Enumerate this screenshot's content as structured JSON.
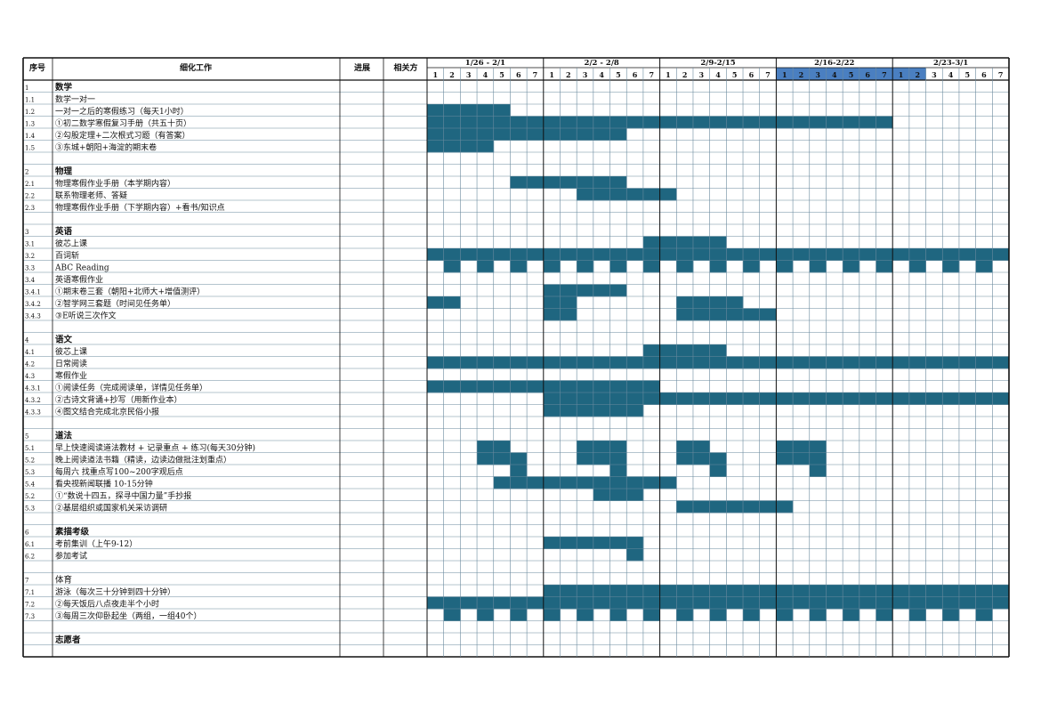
{
  "header": {
    "seq_label": "序号",
    "task_label": "细化工作",
    "progress_label": "进展",
    "related_label": "相关方"
  },
  "weeks": [
    {
      "label": "1/26  - 2/1",
      "highlighted": false
    },
    {
      "label": "2/2  - 2/8",
      "highlighted": false
    },
    {
      "label": "2/9-2/15",
      "highlighted": false
    },
    {
      "label": "2/16-2/22",
      "highlighted": true
    },
    {
      "label": "2/23-3/1",
      "highlighted": false
    }
  ],
  "day_numbers": [
    "1",
    "2",
    "3",
    "4",
    "5",
    "6",
    "7"
  ],
  "highlighted_day_cells": [
    21,
    22,
    23,
    24,
    25,
    26,
    27,
    28,
    29
  ],
  "colors": {
    "fill": "#1f6680",
    "highlight": "#4a7fc1",
    "grid": "#6a8a9e",
    "border": "#111111"
  },
  "rows": [
    {
      "id": "1",
      "task": "数学",
      "bold": true,
      "section": true,
      "fill": ""
    },
    {
      "id": "1.1",
      "task": "数学一对一",
      "fill": "0000000000000000000000000000000000000000000000000000000000000000000000000000000000000000000000000000000000000000000000000000"
    },
    {
      "id": "1.2",
      "task": "一对一之后的寒假练习（每天1小时）",
      "fill": ""
    },
    {
      "id": "1.3",
      "task": "①初二数学寒假复习手册（共五十页）",
      "fill": ""
    },
    {
      "id": "1.4",
      "task": "②勾股定理+二次根式习题（有答案）",
      "fill": ""
    },
    {
      "id": "1.5",
      "task": "③东城+朝阳+海淀的期末卷",
      "fill": ""
    },
    {
      "id": "",
      "task": "",
      "fill": ""
    },
    {
      "id": "2",
      "task": "物理",
      "bold": true,
      "section": true,
      "fill": ""
    },
    {
      "id": "2.1",
      "task": "物理寒假作业手册（本学期内容）",
      "fill": ""
    },
    {
      "id": "2.2",
      "task": "联系物理老师、答疑",
      "fill": ""
    },
    {
      "id": "2.3",
      "task": "物理寒假作业手册（下学期内容）+看书/知识点",
      "fill": ""
    },
    {
      "id": "",
      "task": "",
      "fill": ""
    },
    {
      "id": "3",
      "task": "英语",
      "bold": true,
      "section": true,
      "fill": ""
    },
    {
      "id": "3.1",
      "task": "彼芯上课",
      "fill": ""
    },
    {
      "id": "3.2",
      "task": "百词斩",
      "fill": ""
    },
    {
      "id": "3.3",
      "task": "ABC Reading",
      "fill": ""
    },
    {
      "id": "3.4",
      "task": "英语寒假作业",
      "fill": ""
    },
    {
      "id": "3.4.1",
      "task": "①期末卷三套（朝阳+北师大+增值测评）",
      "fill": ""
    },
    {
      "id": "3.4.2",
      "task": "②智学网三套题（时间见任务单）",
      "fill": ""
    },
    {
      "id": "3.4.3",
      "task": "③E听说三次作文",
      "fill": ""
    },
    {
      "id": "",
      "task": "",
      "fill": ""
    },
    {
      "id": "4",
      "task": "语文",
      "bold": true,
      "section": true,
      "fill": ""
    },
    {
      "id": "4.1",
      "task": "彼芯上课",
      "fill": ""
    },
    {
      "id": "4.2",
      "task": "日常阅读",
      "fill": ""
    },
    {
      "id": "4.3",
      "task": "寒假作业",
      "fill": ""
    },
    {
      "id": "4.3.1",
      "task": "①阅读任务（完成阅读单，详情见任务单）",
      "fill": ""
    },
    {
      "id": "4.3.2",
      "task": "②古诗文背诵+抄写（用新作业本）",
      "fill": ""
    },
    {
      "id": "4.3.3",
      "task": "④图文结合完成北京民俗小报",
      "fill": ""
    },
    {
      "id": "",
      "task": "",
      "fill": ""
    },
    {
      "id": "5",
      "task": "道法",
      "bold": true,
      "section": true,
      "fill": ""
    },
    {
      "id": "5.1",
      "task": "早上快速阅读道法教材 + 记录重点 + 练习(每天30分钟)",
      "fill": ""
    },
    {
      "id": "5.2",
      "task": "晚上阅读道法书籍（精读，边读边做批注划重点）",
      "fill": ""
    },
    {
      "id": "5.3",
      "task": "每周六 找重点写100~200字观后点",
      "fill": ""
    },
    {
      "id": "5.4",
      "task": "看央视新闻联播 10-15分钟",
      "fill": ""
    },
    {
      "id": "5.2",
      "task": "①“数说十四五，探寻中国力量”手抄报",
      "fill": ""
    },
    {
      "id": "5.3",
      "task": "②基层组织或国家机关采访调研",
      "fill": ""
    },
    {
      "id": "",
      "task": "",
      "fill": ""
    },
    {
      "id": "6",
      "task": "素描考级",
      "bold": true,
      "section": true,
      "fill": ""
    },
    {
      "id": "6.1",
      "task": "考前集训（上午9-12）",
      "fill": ""
    },
    {
      "id": "6.2",
      "task": "参加考试",
      "fill": ""
    },
    {
      "id": "",
      "task": "",
      "fill": ""
    },
    {
      "id": "7",
      "task": "体育",
      "bold": false,
      "section": true,
      "fill": ""
    },
    {
      "id": "7.1",
      "task": "游泳（每次三十分钟到四十分钟）",
      "fill": ""
    },
    {
      "id": "7.2",
      "task": "②每天饭后八点夜走半个小时",
      "fill": ""
    },
    {
      "id": "7.3",
      "task": "③每周三次仰卧起坐（两组，一组40个）",
      "fill": ""
    },
    {
      "id": "",
      "task": "",
      "fill": ""
    },
    {
      "id": "",
      "task": "志愿者",
      "bold": true,
      "section": true,
      "fill": ""
    },
    {
      "id": "",
      "task": "",
      "fill": ""
    }
  ],
  "fills": [
    "",
    "000000000000000000000000000000000000000000000000000000000000000000000000",
    "11111000000000000000000000000000000000000000000000000000000000000000",
    "1111111111111111111111111111000000000000000000000000000000000000000",
    "111111111111000000000000000000000000000000000000000000000000000000000",
    "111100000000000000000000000000000000000000000000000000000000000000000",
    "",
    "",
    "000001111111000000000000000000000000000000000000000000000000000000000",
    "00000000011111100000000000000000000000000000000000000000000000000000000",
    "000000000000000000000000000000000000000000000000000000000000000000000",
    "",
    "",
    "000000000000011111000000000000000000000000000000000000000000000000000",
    "111111111111111111111111111111111111111111111111111111111111111111111",
    "010101010101010101010101010101010101010101010101010101010101010101010",
    "",
    "000000011111000000000000000000000000000000000000000000000000000000000",
    "110000011000000111100000000000000000000000000000000000000000000000000",
    "000000011000000111111000000000000000000000000000000000000000000000000",
    "",
    "",
    "000000000000011111000000000000000000000000000000000000000000000000000",
    "111111111111111111111111111111111111111111111111111111111111111111111",
    "",
    "111111111111110000000000000000000000000000000000000000000000000000000",
    "000000011111111111111111111111111111000000000000000000000000000000000",
    "000000011111100000000000000000000000000000000000000000000000000000000",
    "",
    "",
    "000110000111000110000111000000000000000000000000000000000000000000000",
    "000111000111000111000111000000000000000000000000000000000000000000000",
    "000001000001000001000001000000000000000000000000000000000000000000000",
    "000011111111111000000000000000000000000000000000000000000000000000000",
    "000000000011100000000000000000000000000000000000000000000000000000000",
    "000000000000000111111100000000000000000000000000000000000000000000000",
    "",
    "",
    "000000011111100000000000000000000000000000000000000000000000000000000",
    "000000000000100000000000000000000000000000000000000000000000000000000",
    "",
    "",
    "000000011111111111111111111111111111111111111111111111111111111111111",
    "111111111111111111111111111111111111111111111111111111111111111111111",
    "010101010101010101010101010101010101010101010101010101010101010101010",
    "",
    "",
    ""
  ]
}
